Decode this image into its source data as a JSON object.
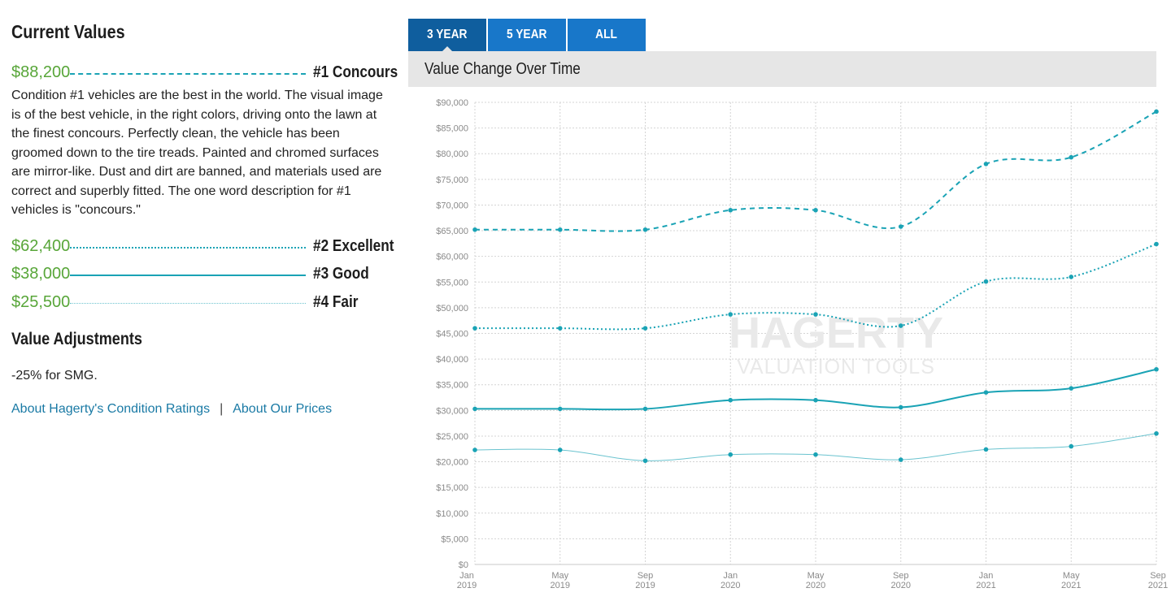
{
  "current_values": {
    "title": "Current Values",
    "rows": [
      {
        "price": "$88,200",
        "label": "#1 Concours"
      },
      {
        "price": "$62,400",
        "label": "#2 Excellent"
      },
      {
        "price": "$38,000",
        "label": "#3 Good"
      },
      {
        "price": "$25,500",
        "label": "#4 Fair"
      }
    ],
    "description": "Condition #1 vehicles are the best in the world. The visual image is of the best vehicle, in the right colors, driving onto the lawn at the finest concours. Perfectly clean, the vehicle has been groomed down to the tire treads. Painted and chromed surfaces are mirror-like. Dust and dirt are banned, and materials used are correct and superbly fitted. The one word description for #1 vehicles is \"concours.\""
  },
  "value_adjustments": {
    "title": "Value Adjustments",
    "text": "-25% for SMG."
  },
  "links": {
    "condition_ratings": "About Hagerty's Condition Ratings",
    "separator": "|",
    "prices": "About Our Prices"
  },
  "tabs": [
    {
      "label": "3 YEAR",
      "active": true
    },
    {
      "label": "5 YEAR",
      "active": false
    },
    {
      "label": "ALL",
      "active": false
    }
  ],
  "chart_header": {
    "title": "Value Change Over Time"
  },
  "watermark": {
    "line1": "HAGERTY",
    "line2": "VALUATION TOOLS"
  },
  "colors": {
    "accent_green": "#58a639",
    "series": "#1aa3b5",
    "tab": "#1877c9",
    "tab_active": "#0f5e9e"
  },
  "chart_data": {
    "type": "line",
    "title": "Value Change Over Time",
    "x_tick_labels": [
      [
        "Jan",
        "2019"
      ],
      [
        "May",
        "2019"
      ],
      [
        "Sep",
        "2019"
      ],
      [
        "Jan",
        "2020"
      ],
      [
        "May",
        "2020"
      ],
      [
        "Sep",
        "2020"
      ],
      [
        "Jan",
        "2021"
      ],
      [
        "May",
        "2021"
      ],
      [
        "Sep",
        "2021"
      ]
    ],
    "y_tick_labels": [
      "$0",
      "$5,000",
      "$10,000",
      "$15,000",
      "$20,000",
      "$25,000",
      "$30,000",
      "$35,000",
      "$40,000",
      "$45,000",
      "$50,000",
      "$55,000",
      "$60,000",
      "$65,000",
      "$70,000",
      "$75,000",
      "$80,000",
      "$85,000",
      "$90,000"
    ],
    "ylim": [
      0,
      90000
    ],
    "grid": true,
    "series": [
      {
        "name": "#1 Concours",
        "style": "dashed",
        "values": [
          65200,
          65200,
          65200,
          69000,
          69000,
          65800,
          78000,
          79300,
          88200
        ]
      },
      {
        "name": "#2 Excellent",
        "style": "dotted",
        "values": [
          46000,
          46000,
          46000,
          48700,
          48700,
          46500,
          55100,
          56000,
          62400
        ]
      },
      {
        "name": "#3 Good",
        "style": "solid",
        "values": [
          30300,
          30300,
          30300,
          32000,
          32000,
          30600,
          33500,
          34300,
          38000
        ]
      },
      {
        "name": "#4 Fair",
        "style": "thin",
        "values": [
          22300,
          22300,
          20200,
          21400,
          21400,
          20400,
          22400,
          23000,
          25500
        ]
      }
    ]
  }
}
